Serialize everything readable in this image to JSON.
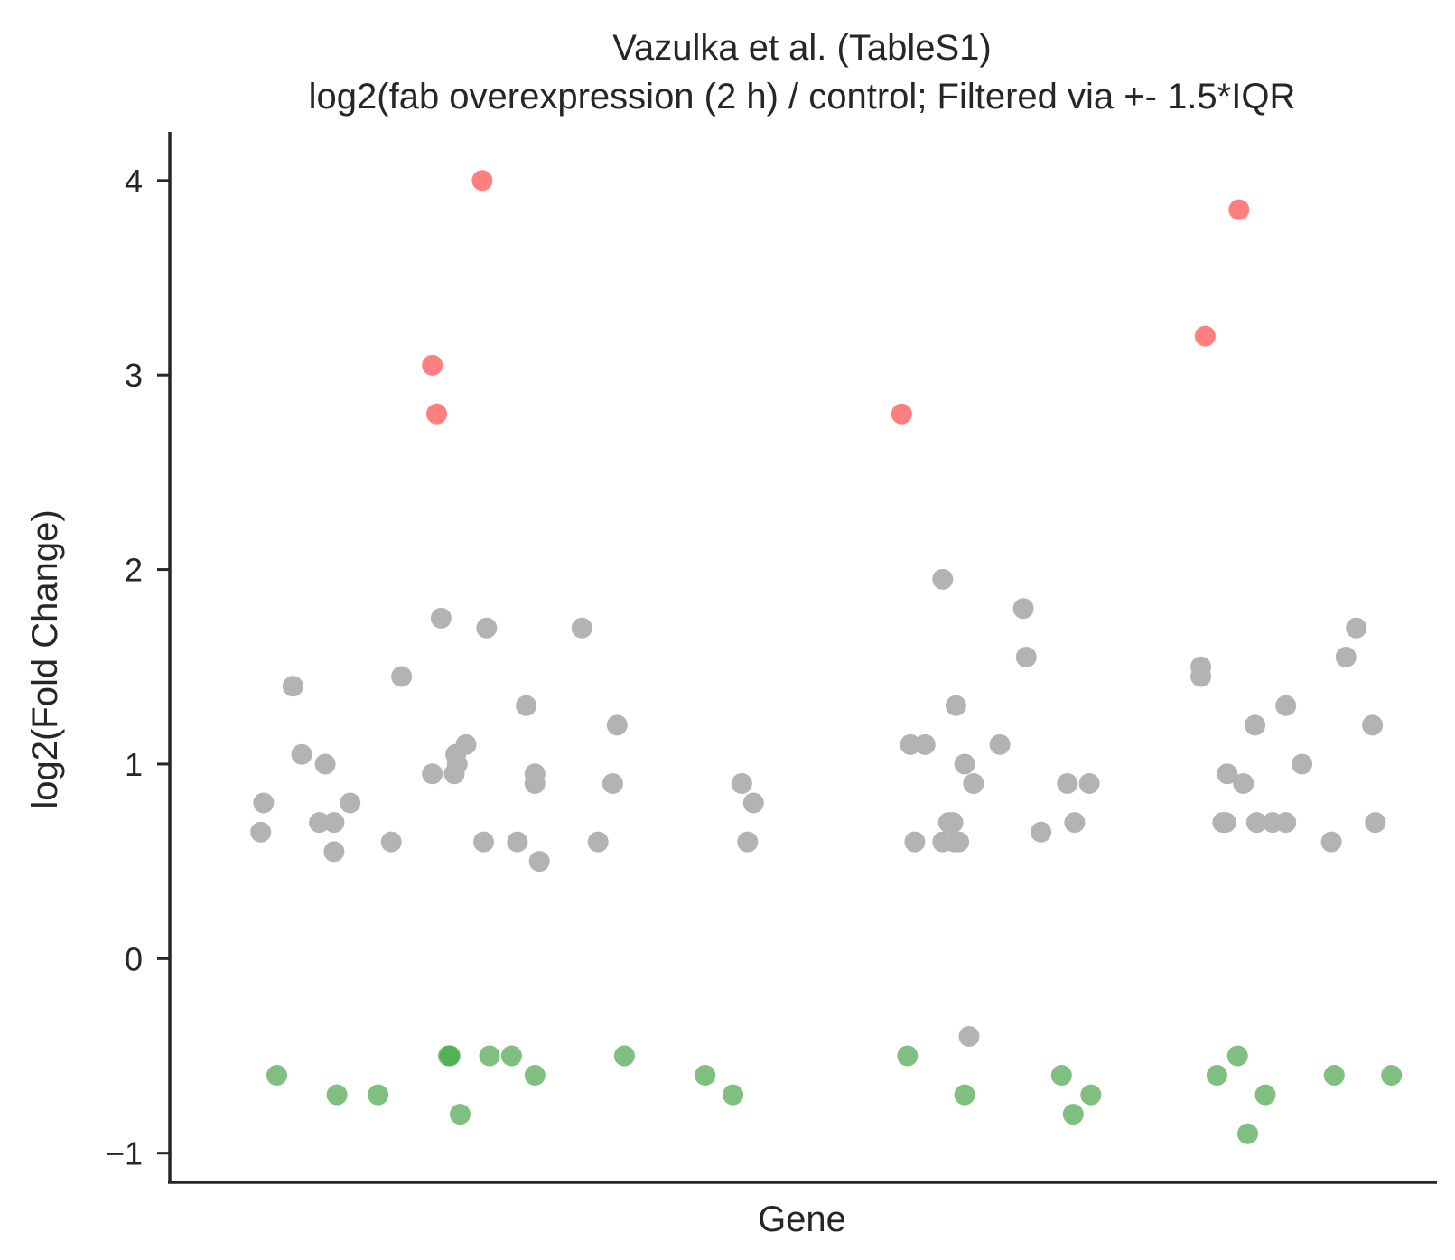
{
  "chart_data": {
    "type": "scatter",
    "title": "Vazulka et al. (TableS1)",
    "subtitle": "log2(fab overexpression (2 h) / control; Filtered via +- 1.5*IQR",
    "xlabel": "Gene",
    "ylabel": "log2(Fold Change)",
    "ylim": [
      -1.15,
      4.25
    ],
    "yticks": [
      -1,
      0,
      1,
      2,
      3,
      4
    ],
    "ytick_labels": [
      "−1",
      "0",
      "1",
      "2",
      "3",
      "4"
    ],
    "grid": false,
    "colors": {
      "up": "#ff7f7f",
      "neutral": "#b3b3b3",
      "down": "#7fbf7f",
      "down_dark": "#4caf50"
    },
    "series": [
      {
        "category": "up",
        "points": [
          [
            148,
            3.05
          ],
          [
            151,
            2.8
          ],
          [
            182,
            4.0
          ],
          [
            468,
            2.8
          ],
          [
            675,
            3.2
          ],
          [
            698,
            3.85
          ]
        ]
      },
      {
        "category": "neutral",
        "points": [
          [
            31,
            0.65
          ],
          [
            33,
            0.8
          ],
          [
            53,
            1.4
          ],
          [
            59,
            1.05
          ],
          [
            71,
            0.7
          ],
          [
            75,
            1.0
          ],
          [
            81,
            0.7
          ],
          [
            81,
            0.55
          ],
          [
            92,
            0.8
          ],
          [
            120,
            0.6
          ],
          [
            127,
            1.45
          ],
          [
            148,
            0.95
          ],
          [
            154,
            1.75
          ],
          [
            163,
            0.95
          ],
          [
            164,
            1.05
          ],
          [
            165,
            1.0
          ],
          [
            171,
            1.1
          ],
          [
            183,
            0.6
          ],
          [
            185,
            1.7
          ],
          [
            206,
            0.6
          ],
          [
            212,
            1.3
          ],
          [
            218,
            0.95
          ],
          [
            218,
            0.9
          ],
          [
            221,
            0.5
          ],
          [
            250,
            1.7
          ],
          [
            261,
            0.6
          ],
          [
            271,
            0.9
          ],
          [
            274,
            1.2
          ],
          [
            359,
            0.9
          ],
          [
            363,
            0.6
          ],
          [
            367,
            0.8
          ],
          [
            474,
            1.1
          ],
          [
            477,
            0.6
          ],
          [
            484,
            1.1
          ],
          [
            496,
            1.95
          ],
          [
            496,
            0.6
          ],
          [
            500,
            0.7
          ],
          [
            503,
            0.7
          ],
          [
            504,
            0.6
          ],
          [
            505,
            1.3
          ],
          [
            507,
            0.6
          ],
          [
            511,
            1.0
          ],
          [
            514,
            -0.4
          ],
          [
            517,
            0.9
          ],
          [
            535,
            1.1
          ],
          [
            551,
            1.8
          ],
          [
            553,
            1.55
          ],
          [
            563,
            0.65
          ],
          [
            581,
            0.9
          ],
          [
            586,
            0.7
          ],
          [
            596,
            0.9
          ],
          [
            672,
            1.5
          ],
          [
            672,
            1.45
          ],
          [
            687,
            0.7
          ],
          [
            689,
            0.7
          ],
          [
            690,
            0.95
          ],
          [
            701,
            0.9
          ],
          [
            709,
            1.2
          ],
          [
            710,
            0.7
          ],
          [
            721,
            0.7
          ],
          [
            730,
            1.3
          ],
          [
            730,
            0.7
          ],
          [
            741,
            1.0
          ],
          [
            761,
            0.6
          ],
          [
            771,
            1.55
          ],
          [
            778,
            1.7
          ],
          [
            789,
            1.2
          ],
          [
            791,
            0.7
          ]
        ]
      },
      {
        "category": "down",
        "points": [
          [
            42,
            -0.6
          ],
          [
            83,
            -0.7
          ],
          [
            111,
            -0.7
          ],
          [
            159,
            -0.5
          ],
          [
            167,
            -0.8
          ],
          [
            187,
            -0.5
          ],
          [
            202,
            -0.5
          ],
          [
            218,
            -0.6
          ],
          [
            279,
            -0.5
          ],
          [
            334,
            -0.6
          ],
          [
            353,
            -0.7
          ],
          [
            472,
            -0.5
          ],
          [
            511,
            -0.7
          ],
          [
            577,
            -0.6
          ],
          [
            585,
            -0.8
          ],
          [
            597,
            -0.7
          ],
          [
            683,
            -0.6
          ],
          [
            697,
            -0.5
          ],
          [
            704,
            -0.9
          ],
          [
            716,
            -0.7
          ],
          [
            763,
            -0.6
          ],
          [
            802,
            -0.6
          ]
        ]
      },
      {
        "category": "down_dark",
        "points": [
          [
            160,
            -0.5
          ]
        ]
      }
    ]
  }
}
